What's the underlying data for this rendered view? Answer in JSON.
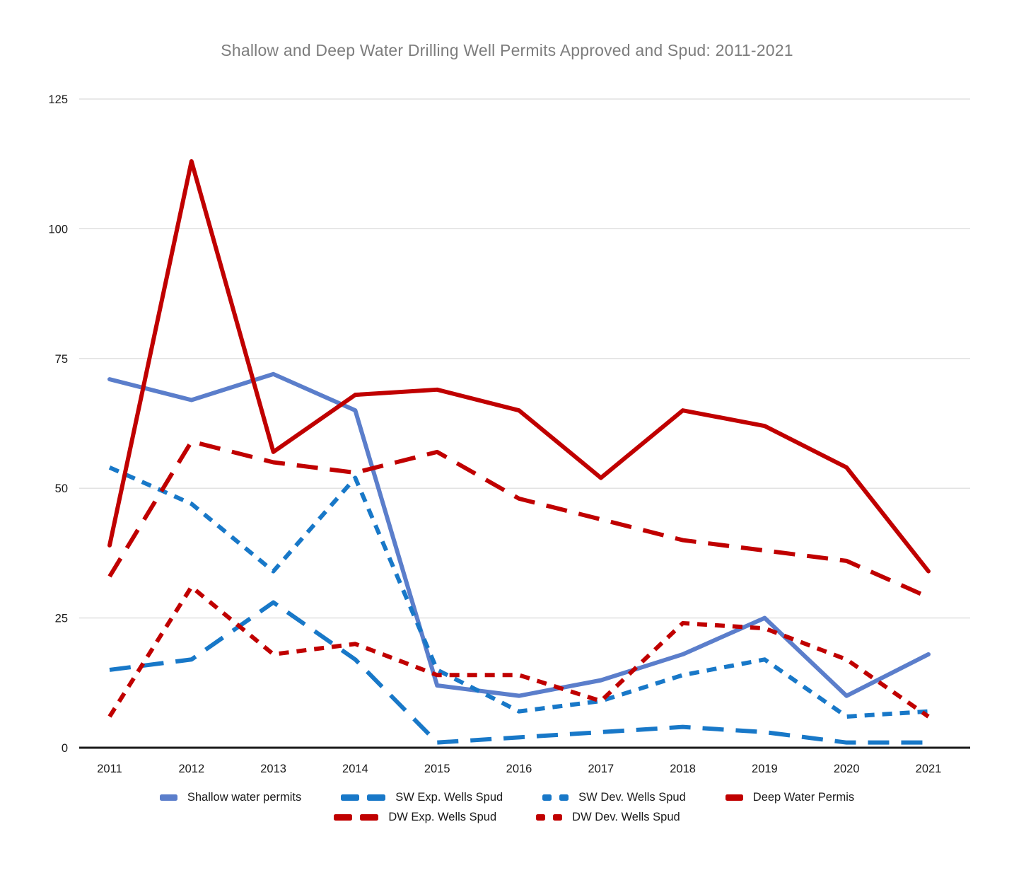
{
  "title": "Shallow and Deep Water Drilling Well Permits Approved and Spud: 2011-2021",
  "chart_data": {
    "type": "line",
    "x": [
      2011,
      2012,
      2013,
      2014,
      2015,
      2016,
      2017,
      2018,
      2019,
      2020,
      2021
    ],
    "x_tick_labels": [
      "2011",
      "2012",
      "2013",
      "2014",
      "2015",
      "2016",
      "2017",
      "2018",
      "2019",
      "2020",
      "2021"
    ],
    "yticks": [
      0,
      25,
      50,
      75,
      100,
      125
    ],
    "ylim": [
      0,
      125
    ],
    "grid": true,
    "legend_position": "bottom",
    "series": [
      {
        "name": "Shallow water permits",
        "color": "#5b7ecb",
        "dash": "solid",
        "values": [
          71,
          67,
          72,
          65,
          12,
          10,
          13,
          18,
          25,
          10,
          18
        ]
      },
      {
        "name": "SW Exp. Wells Spud",
        "color": "#1878c8",
        "dash": "long",
        "values": [
          15,
          17,
          28,
          17,
          1,
          2,
          3,
          4,
          3,
          1,
          1
        ]
      },
      {
        "name": "SW Dev. Wells Spud",
        "color": "#1878c8",
        "dash": "short",
        "values": [
          54,
          47,
          34,
          52,
          15,
          7,
          9,
          14,
          17,
          6,
          7
        ]
      },
      {
        "name": "Deep Water Permis",
        "color": "#c00000",
        "dash": "solid",
        "values": [
          39,
          113,
          57,
          68,
          69,
          65,
          52,
          65,
          62,
          54,
          34
        ]
      },
      {
        "name": "DW Exp. Wells Spud",
        "color": "#c00000",
        "dash": "long",
        "values": [
          33,
          59,
          55,
          53,
          57,
          48,
          44,
          40,
          38,
          36,
          29
        ]
      },
      {
        "name": "DW Dev. Wells Spud",
        "color": "#c00000",
        "dash": "short",
        "values": [
          6,
          31,
          18,
          20,
          14,
          14,
          9,
          24,
          23,
          17,
          6
        ]
      }
    ]
  },
  "colors": {
    "grid": "#d9d9d9",
    "axis": "#1a1a1a",
    "tick_label": "#1a1a1a",
    "title": "#7d7d7d"
  }
}
